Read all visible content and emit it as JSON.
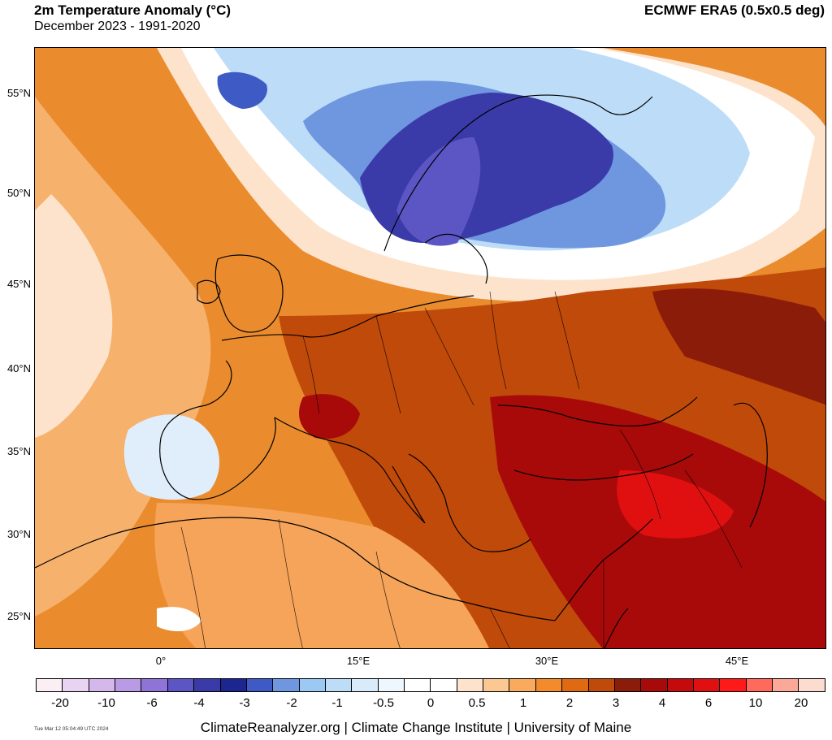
{
  "header": {
    "title": "2m Temperature Anomaly (°C)",
    "subtitle": "December 2023 - 1991-2020",
    "dataset": "ECMWF ERA5 (0.5x0.5 deg)"
  },
  "axes": {
    "lat_labels": [
      "55°N",
      "50°N",
      "45°N",
      "40°N",
      "35°N",
      "30°N",
      "25°N"
    ],
    "lon_labels": [
      "0°",
      "15°E",
      "30°E",
      "45°E"
    ]
  },
  "legend": {
    "ticks": [
      "-20",
      "-10",
      "-6",
      "-4",
      "-3",
      "-2",
      "-1",
      "-0.5",
      "0",
      "0.5",
      "1",
      "2",
      "3",
      "4",
      "6",
      "10",
      "20"
    ],
    "colors": [
      "#fbeef4",
      "#e8d4f2",
      "#d4b8ec",
      "#b99ae4",
      "#8f74d8",
      "#5c55c4",
      "#3a3ba8",
      "#1c2590",
      "#3e5ac4",
      "#6e97e0",
      "#9cc8f4",
      "#bddcf8",
      "#d8ebfb",
      "#eef6fe",
      "#ffffff",
      "#ffffff",
      "#fde3cc",
      "#fbc893",
      "#f9aa5c",
      "#f38a2c",
      "#df6a12",
      "#c04a0a",
      "#8c1c0a",
      "#a80a0a",
      "#c40a0a",
      "#e01010",
      "#ff1a1a",
      "#ff6a5c",
      "#fca898",
      "#fddcd0"
    ]
  },
  "footer": {
    "timestamp": "Tue Mar 12 05:04:49 UTC 2024",
    "credit": "ClimateReanalyzer.org | Climate Change Institute | University of Maine"
  }
}
